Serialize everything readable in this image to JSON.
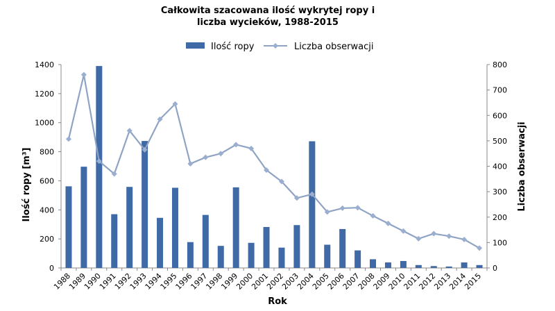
{
  "chart_data": {
    "type": "bar+line",
    "title_lines": [
      "Całkowita szacowana ilość wykrytej ropy i",
      "liczba wycieków, 1988-2015"
    ],
    "xlabel": "Rok",
    "ylabel_left": "Ilość ropy [m³]",
    "ylabel_right": "Liczba obserwacji",
    "ylim_left": [
      0,
      1400
    ],
    "ylim_right": [
      0,
      800
    ],
    "yticks_left": [
      "0",
      "200",
      "400",
      "600",
      "800",
      "1000",
      "1200",
      "1400"
    ],
    "yticks_right": [
      "0",
      "100",
      "200",
      "300",
      "400",
      "500",
      "600",
      "700",
      "800"
    ],
    "categories": [
      "1988",
      "1989",
      "1990",
      "1991",
      "1992",
      "1993",
      "1994",
      "1995",
      "1996",
      "1997",
      "1998",
      "1999",
      "2000",
      "2001",
      "2002",
      "2003",
      "2004",
      "2005",
      "2006",
      "2007",
      "2008",
      "2009",
      "2010",
      "2011",
      "2012",
      "2013",
      "2014",
      "2015"
    ],
    "legend_position": "top",
    "grid": false,
    "colors": {
      "bar": "#3f6aa6",
      "line": "#8fa3c4",
      "marker": "#9aaed0"
    },
    "series": [
      {
        "name": "Ilość ropy",
        "type": "bar",
        "axis": "left",
        "values": [
          562,
          697,
          1390,
          370,
          558,
          874,
          345,
          552,
          178,
          365,
          152,
          555,
          173,
          282,
          140,
          295,
          872,
          160,
          268,
          121,
          60,
          38,
          48,
          20,
          13,
          10,
          38,
          20
        ]
      },
      {
        "name": "Liczba obserwacji",
        "type": "line",
        "axis": "right",
        "values": [
          507,
          760,
          420,
          370,
          540,
          465,
          585,
          645,
          410,
          435,
          450,
          485,
          470,
          385,
          340,
          275,
          290,
          220,
          235,
          237,
          205,
          175,
          145,
          115,
          135,
          125,
          112,
          78
        ]
      }
    ]
  }
}
